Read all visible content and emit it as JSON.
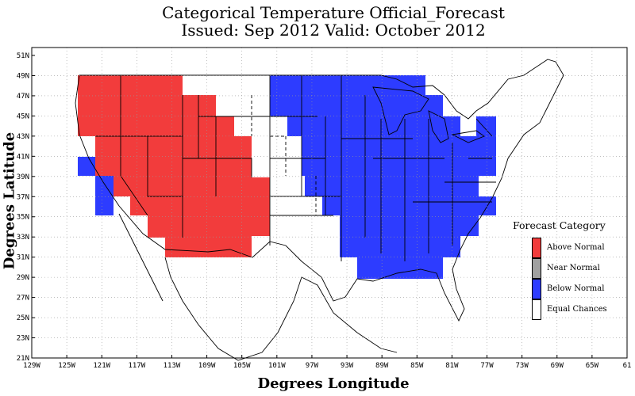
{
  "title_line1": "Categorical Temperature Official_Forecast",
  "title_line2": "Issued: Sep 2012 Valid: October 2012",
  "xlabel": "Degrees Longitude",
  "ylabel": "Degrees Latitude",
  "x_ticks": [
    "129W",
    "125W",
    "121W",
    "117W",
    "113W",
    "109W",
    "105W",
    "101W",
    "97W",
    "93W",
    "89W",
    "85W",
    "81W",
    "77W",
    "73W",
    "69W",
    "65W",
    "61"
  ],
  "y_ticks": [
    "51N",
    "49N",
    "47N",
    "45N",
    "43N",
    "41N",
    "39N",
    "37N",
    "35N",
    "33N",
    "31N",
    "29N",
    "27N",
    "25N",
    "23N",
    "21N"
  ],
  "legend": {
    "title": "Forecast Category",
    "items": [
      {
        "label": "Above Normal",
        "color": "#f23c3c"
      },
      {
        "label": "Near Normal",
        "color": "#a0a0a0"
      },
      {
        "label": "Below Normal",
        "color": "#2d3cff"
      },
      {
        "label": "Equal Chances",
        "color": "#ffffff"
      }
    ]
  },
  "colors": {
    "above": "#f23c3c",
    "below": "#2d3cff"
  }
}
